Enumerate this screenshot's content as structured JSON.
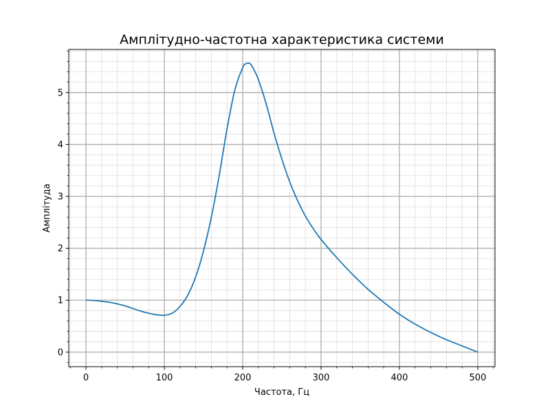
{
  "chart_data": {
    "type": "line",
    "title": "Амплітудно-частотна характеристика системи",
    "xlabel": "Частота, Гц",
    "ylabel": "Амплітуда",
    "xlim": [
      -22,
      522
    ],
    "ylim": [
      -0.28,
      5.83
    ],
    "xticks": [
      0,
      100,
      200,
      300,
      400,
      500
    ],
    "yticks": [
      0,
      1,
      2,
      3,
      4,
      5
    ],
    "x_minor_step": 20,
    "y_minor_step": 0.2,
    "grid": {
      "major": true,
      "minor": true
    },
    "line_color": "#1f77b4",
    "series": [
      {
        "x": [
          0,
          10,
          20,
          30,
          40,
          50,
          60,
          70,
          80,
          90,
          100,
          110,
          120,
          130,
          140,
          150,
          160,
          170,
          180,
          190,
          200,
          205,
          210,
          215,
          220,
          230,
          240,
          250,
          260,
          270,
          280,
          290,
          300,
          320,
          340,
          360,
          380,
          400,
          420,
          440,
          460,
          480,
          500
        ],
        "y": [
          1.0,
          0.995,
          0.98,
          0.96,
          0.93,
          0.89,
          0.84,
          0.79,
          0.75,
          0.72,
          0.71,
          0.75,
          0.88,
          1.1,
          1.45,
          1.95,
          2.6,
          3.4,
          4.3,
          5.05,
          5.48,
          5.56,
          5.55,
          5.42,
          5.25,
          4.78,
          4.22,
          3.72,
          3.28,
          2.92,
          2.62,
          2.38,
          2.17,
          1.82,
          1.5,
          1.21,
          0.96,
          0.73,
          0.54,
          0.38,
          0.24,
          0.12,
          0.0
        ]
      }
    ]
  }
}
